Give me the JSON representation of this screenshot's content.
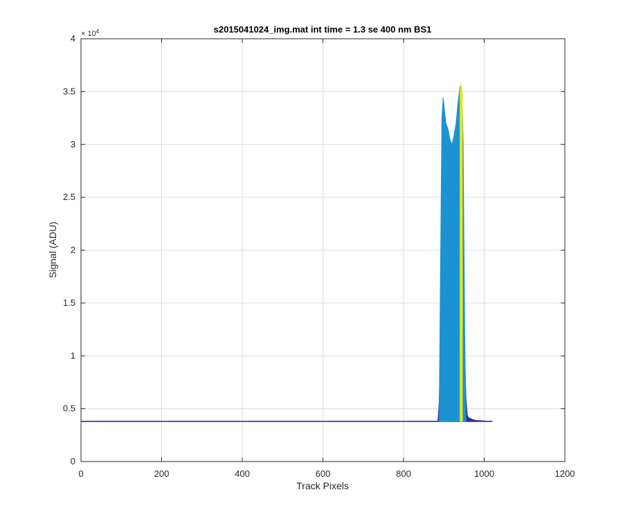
{
  "chart_data": {
    "type": "area",
    "title": "s2015041024_img.mat int time = 1.3 se  400 nm BS1",
    "xlabel": "Track Pixels",
    "ylabel": "Signal (ADU)",
    "xlim": [
      0,
      1200
    ],
    "ylim": [
      0,
      40000
    ],
    "x_ticks": [
      0,
      200,
      400,
      600,
      800,
      1000,
      1200
    ],
    "x_tick_labels": [
      "0",
      "200",
      "400",
      "600",
      "800",
      "1000",
      "1200"
    ],
    "y_ticks": [
      0,
      5000,
      10000,
      15000,
      20000,
      25000,
      30000,
      35000,
      40000
    ],
    "y_tick_labels": [
      "0",
      "0.5",
      "1",
      "1.5",
      "2",
      "2.5",
      "3",
      "3.5",
      "4"
    ],
    "y_exponent_label": "× 10",
    "y_exponent_power": "4",
    "grid": true,
    "baseline_level": 3800,
    "series": [
      {
        "color": "#2e3192",
        "x": [
          0,
          200,
          400,
          600,
          800,
          885,
          888,
          895,
          900,
          905,
          910,
          915,
          920,
          925,
          930,
          935,
          940,
          945,
          950,
          955,
          958,
          960,
          965,
          970,
          980,
          1000,
          1020
        ],
        "y": [
          3800,
          3800,
          3800,
          3800,
          3800,
          3800,
          5500,
          15000,
          16000,
          14500,
          13500,
          13000,
          12800,
          13000,
          14000,
          15500,
          16500,
          15800,
          12000,
          6000,
          4500,
          4200,
          4100,
          4000,
          3900,
          3850,
          3800
        ]
      },
      {
        "color": "#1b92d1",
        "x": [
          888,
          893,
          895,
          898,
          900,
          905,
          910,
          915,
          920,
          925,
          930,
          935,
          940,
          945,
          948,
          952,
          955
        ],
        "y": [
          3800,
          25000,
          32500,
          34500,
          33800,
          32000,
          31500,
          30500,
          30000,
          30800,
          32000,
          34000,
          35500,
          35000,
          30000,
          12000,
          3800
        ]
      },
      {
        "color": "#e5e51f",
        "x": [
          940,
          942,
          944,
          946
        ],
        "y": [
          35000,
          35800,
          35400,
          34500
        ]
      }
    ]
  }
}
